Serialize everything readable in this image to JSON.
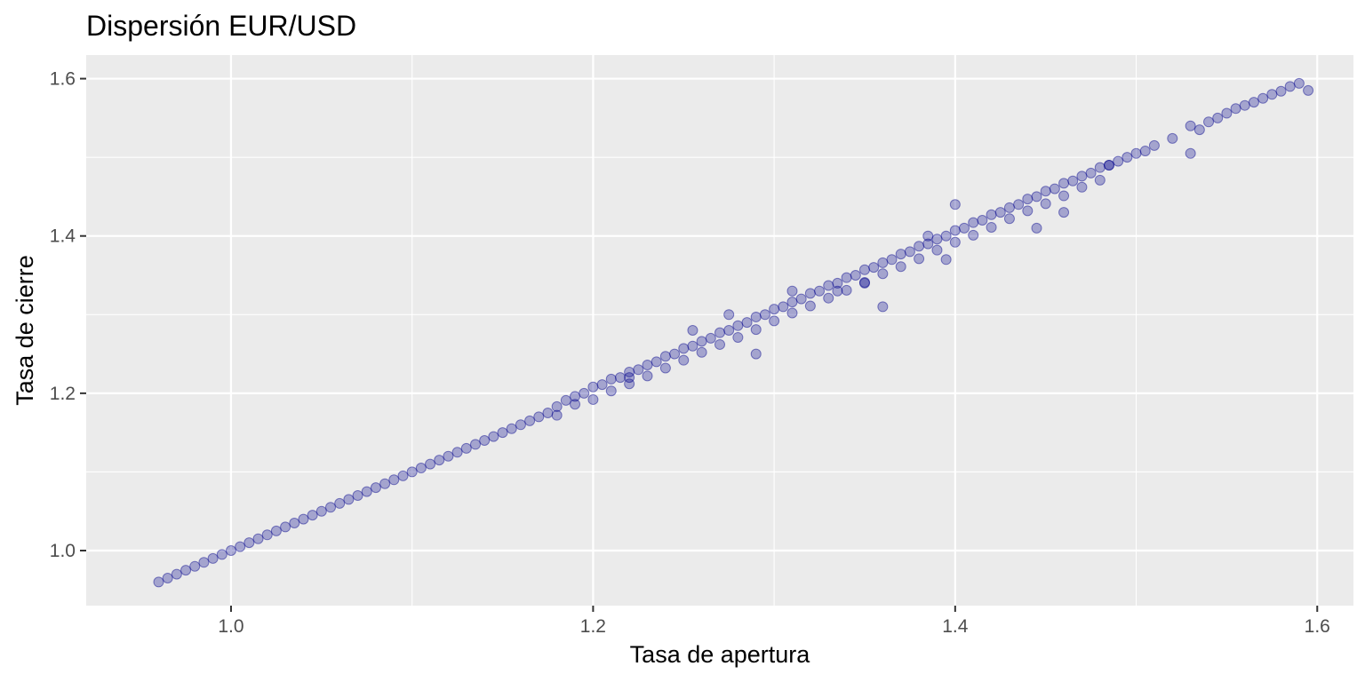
{
  "chart_data": {
    "type": "scatter",
    "title": "Dispersión EUR/USD",
    "xlabel": "Tasa de apertura",
    "ylabel": "Tasa de cierre",
    "xlim": [
      0.92,
      1.62
    ],
    "ylim": [
      0.93,
      1.63
    ],
    "x_ticks": [
      "1.0",
      "1.2",
      "1.4",
      "1.6"
    ],
    "y_ticks": [
      "1.0",
      "1.2",
      "1.4",
      "1.6"
    ],
    "grid": true,
    "point_color": "#00008B",
    "point_opacity": 0.3,
    "panel_background": "#EBEBEB",
    "series": [
      {
        "x": [
          0.96,
          0.965,
          0.97,
          0.975,
          0.98,
          0.985,
          0.99,
          0.995,
          1.0,
          1.005,
          1.01,
          1.015,
          1.02,
          1.025,
          1.03,
          1.035,
          1.04,
          1.045,
          1.05,
          1.055,
          1.06,
          1.065,
          1.07,
          1.075,
          1.08,
          1.085,
          1.09,
          1.095,
          1.1,
          1.105,
          1.11,
          1.115,
          1.12,
          1.125,
          1.13,
          1.135,
          1.14,
          1.145,
          1.15,
          1.155,
          1.16,
          1.165,
          1.17,
          1.175,
          1.18,
          1.18,
          1.185,
          1.19,
          1.19,
          1.195,
          1.2,
          1.2,
          1.205,
          1.21,
          1.21,
          1.215,
          1.22,
          1.22,
          1.225,
          1.23,
          1.23,
          1.235,
          1.24,
          1.24,
          1.245,
          1.25,
          1.25,
          1.255,
          1.26,
          1.26,
          1.265,
          1.27,
          1.27,
          1.275,
          1.28,
          1.28,
          1.285,
          1.29,
          1.29,
          1.295,
          1.3,
          1.3,
          1.305,
          1.31,
          1.31,
          1.315,
          1.32,
          1.32,
          1.325,
          1.33,
          1.33,
          1.335,
          1.34,
          1.34,
          1.345,
          1.35,
          1.35,
          1.355,
          1.36,
          1.36,
          1.365,
          1.37,
          1.37,
          1.375,
          1.38,
          1.38,
          1.385,
          1.39,
          1.39,
          1.395,
          1.4,
          1.4,
          1.405,
          1.41,
          1.41,
          1.415,
          1.42,
          1.42,
          1.425,
          1.43,
          1.43,
          1.435,
          1.44,
          1.44,
          1.445,
          1.45,
          1.45,
          1.455,
          1.46,
          1.46,
          1.465,
          1.47,
          1.47,
          1.475,
          1.48,
          1.48,
          1.485,
          1.49,
          1.495,
          1.5,
          1.505,
          1.51,
          1.52,
          1.53,
          1.535,
          1.54,
          1.545,
          1.55,
          1.555,
          1.56,
          1.565,
          1.57,
          1.575,
          1.58,
          1.585,
          1.59,
          1.595,
          1.255,
          1.29,
          1.335,
          1.36,
          1.46,
          1.53,
          1.4,
          1.445,
          1.395,
          1.22,
          1.275,
          1.31,
          1.35,
          1.385,
          1.485
        ],
        "y": [
          0.96,
          0.965,
          0.97,
          0.975,
          0.98,
          0.985,
          0.99,
          0.995,
          1.0,
          1.005,
          1.01,
          1.015,
          1.02,
          1.025,
          1.03,
          1.035,
          1.04,
          1.045,
          1.05,
          1.055,
          1.06,
          1.065,
          1.07,
          1.075,
          1.08,
          1.085,
          1.09,
          1.095,
          1.1,
          1.105,
          1.11,
          1.115,
          1.12,
          1.125,
          1.13,
          1.135,
          1.14,
          1.145,
          1.15,
          1.155,
          1.16,
          1.165,
          1.17,
          1.175,
          1.183,
          1.172,
          1.191,
          1.186,
          1.196,
          1.2,
          1.208,
          1.192,
          1.211,
          1.218,
          1.203,
          1.22,
          1.227,
          1.212,
          1.23,
          1.236,
          1.222,
          1.24,
          1.247,
          1.232,
          1.25,
          1.257,
          1.242,
          1.26,
          1.266,
          1.252,
          1.27,
          1.277,
          1.262,
          1.28,
          1.286,
          1.271,
          1.29,
          1.297,
          1.281,
          1.3,
          1.307,
          1.292,
          1.31,
          1.316,
          1.302,
          1.32,
          1.327,
          1.311,
          1.33,
          1.337,
          1.321,
          1.34,
          1.347,
          1.331,
          1.35,
          1.357,
          1.341,
          1.36,
          1.366,
          1.352,
          1.37,
          1.377,
          1.361,
          1.38,
          1.387,
          1.371,
          1.39,
          1.396,
          1.382,
          1.4,
          1.407,
          1.392,
          1.41,
          1.417,
          1.401,
          1.42,
          1.427,
          1.411,
          1.43,
          1.436,
          1.422,
          1.44,
          1.447,
          1.432,
          1.45,
          1.457,
          1.441,
          1.46,
          1.467,
          1.451,
          1.47,
          1.476,
          1.462,
          1.48,
          1.487,
          1.471,
          1.49,
          1.495,
          1.5,
          1.505,
          1.508,
          1.515,
          1.524,
          1.54,
          1.535,
          1.545,
          1.55,
          1.556,
          1.562,
          1.566,
          1.57,
          1.575,
          1.58,
          1.584,
          1.59,
          1.594,
          1.585,
          1.28,
          1.25,
          1.33,
          1.31,
          1.43,
          1.505,
          1.44,
          1.41,
          1.37,
          1.22,
          1.3,
          1.33,
          1.34,
          1.4,
          1.49
        ]
      }
    ]
  }
}
